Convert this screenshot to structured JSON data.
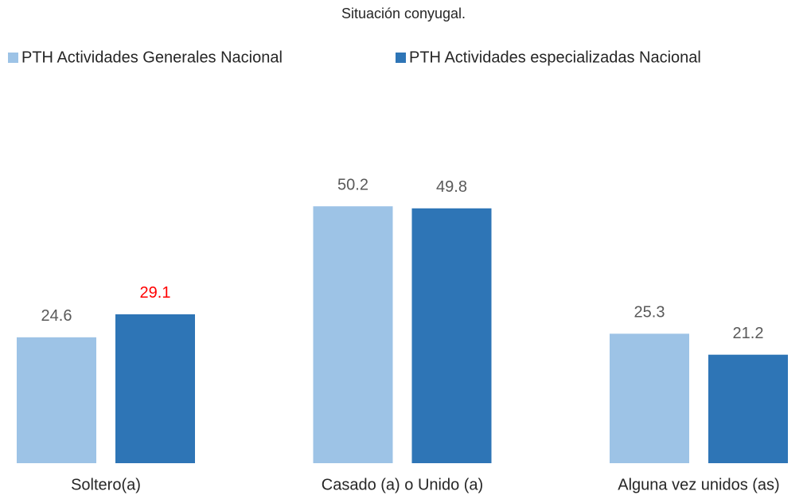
{
  "chart_data": {
    "type": "bar",
    "title": "Situación conyugal.",
    "categories": [
      "Soltero(a)",
      "Casado (a) o Unido (a)",
      "Alguna vez unidos (as)"
    ],
    "series": [
      {
        "name": "PTH Actividades Generales Nacional",
        "color": "#9dc3e6",
        "values": [
          24.6,
          50.2,
          25.3
        ],
        "value_label_colors": [
          "#595959",
          "#595959",
          "#595959"
        ]
      },
      {
        "name": "PTH Actividades especializadas Nacional",
        "color": "#2e75b6",
        "values": [
          29.1,
          49.8,
          21.2
        ],
        "value_label_colors": [
          "#ff0000",
          "#595959",
          "#595959"
        ]
      }
    ],
    "legend": "top",
    "grid": false
  }
}
